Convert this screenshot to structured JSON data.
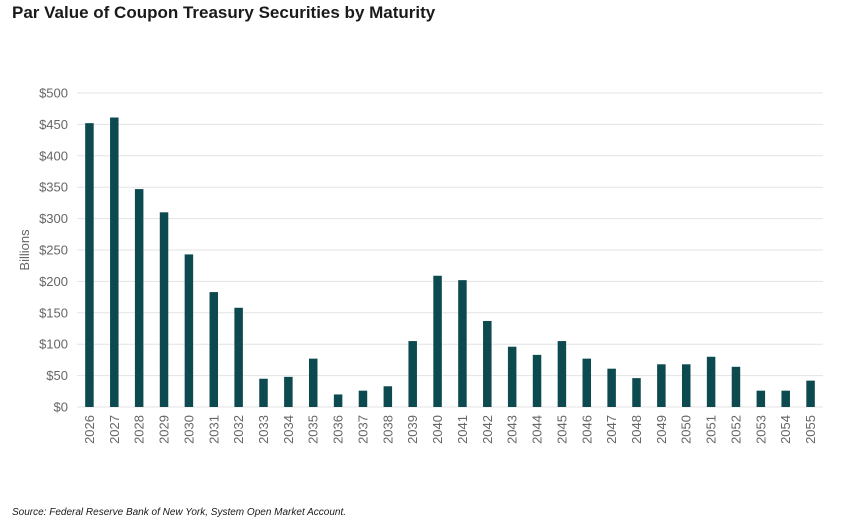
{
  "chart_data": {
    "type": "bar",
    "title": "Par Value of Coupon Treasury Securities by Maturity",
    "xlabel": "",
    "ylabel": "Billions",
    "categories": [
      "2026",
      "2027",
      "2028",
      "2029",
      "2030",
      "2031",
      "2032",
      "2033",
      "2034",
      "2035",
      "2036",
      "2037",
      "2038",
      "2039",
      "2040",
      "2041",
      "2042",
      "2043",
      "2044",
      "2045",
      "2046",
      "2047",
      "2048",
      "2049",
      "2050",
      "2051",
      "2052",
      "2053",
      "2054",
      "2055"
    ],
    "values": [
      452,
      461,
      347,
      310,
      243,
      183,
      158,
      45,
      48,
      77,
      20,
      26,
      33,
      105,
      209,
      202,
      137,
      96,
      83,
      105,
      77,
      61,
      46,
      68,
      68,
      80,
      64,
      26,
      26,
      42
    ],
    "ylim": [
      0,
      500
    ],
    "yticks": [
      0,
      50,
      100,
      150,
      200,
      250,
      300,
      350,
      400,
      450,
      500
    ],
    "ytick_labels": [
      "$0",
      "$50",
      "$100",
      "$150",
      "$200",
      "$250",
      "$300",
      "$350",
      "$400",
      "$450",
      "$500"
    ],
    "grid": true,
    "bar_color": "#0c4a50",
    "grid_color": "#e3e3e3",
    "source": "Source: Federal Reserve Bank of New York, System Open Market Account."
  }
}
